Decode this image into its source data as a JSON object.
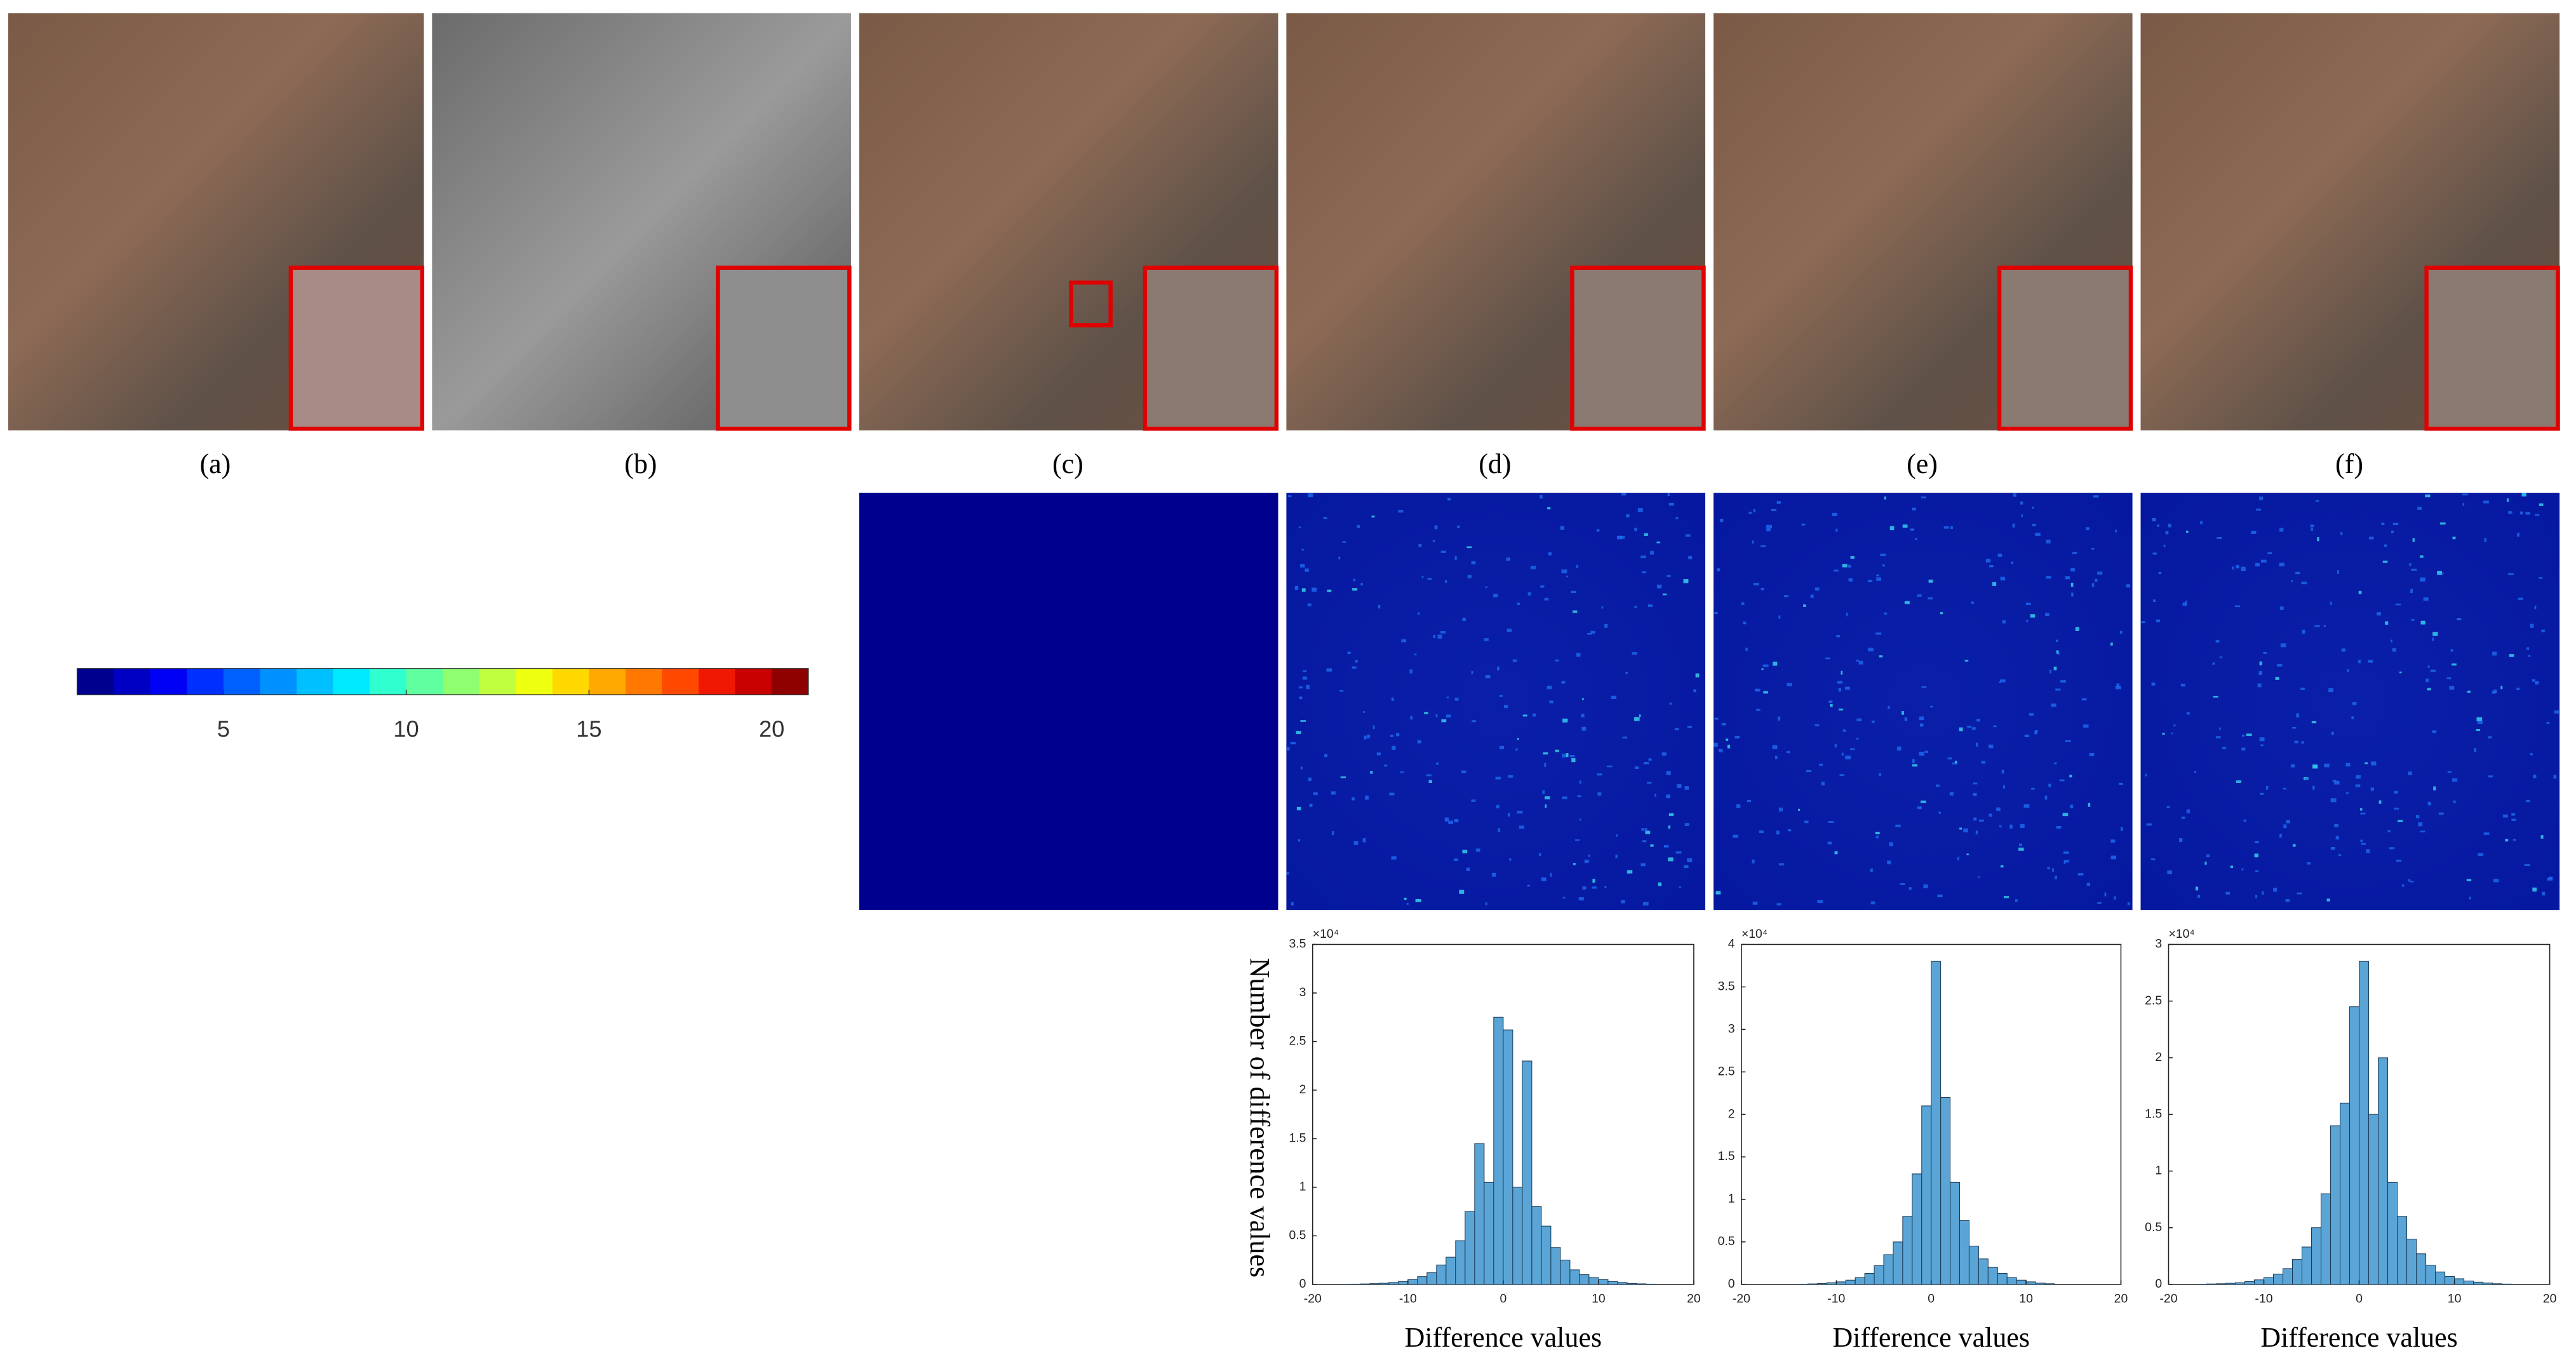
{
  "panel_labels": [
    "(a)",
    "(b)",
    "(c)",
    "(d)",
    "(e)",
    "(f)"
  ],
  "chart_data": [
    {
      "type": "colorbar",
      "clim": [
        1,
        21
      ],
      "ticks": [
        5,
        10,
        15,
        20
      ],
      "colors": [
        "#00008f",
        "#0000c4",
        "#0000f5",
        "#0030ff",
        "#0060ff",
        "#0090ff",
        "#00c0ff",
        "#00eaff",
        "#30ffcf",
        "#60ff9f",
        "#90ff6f",
        "#c0ff3f",
        "#efff10",
        "#ffd800",
        "#ffa800",
        "#ff7800",
        "#ff4800",
        "#f01800",
        "#c80000",
        "#8f0000"
      ]
    },
    {
      "type": "histogram",
      "ylabel": "Number of difference values",
      "xlabel": "Difference values",
      "y_multiplier": "×10⁴",
      "bins": [
        -17,
        -16,
        -15,
        -14,
        -13,
        -12,
        -11,
        -10,
        -9,
        -8,
        -7,
        -6,
        -5,
        -4,
        -3,
        -2,
        -1,
        0,
        1,
        2,
        3,
        4,
        5,
        6,
        7,
        8,
        9,
        10,
        11,
        12,
        13,
        14,
        15,
        16
      ],
      "values": [
        0.002,
        0.003,
        0.005,
        0.008,
        0.012,
        0.02,
        0.03,
        0.05,
        0.08,
        0.12,
        0.2,
        0.28,
        0.45,
        0.75,
        1.45,
        1.05,
        2.75,
        2.62,
        1.0,
        2.3,
        0.8,
        0.6,
        0.38,
        0.25,
        0.15,
        0.1,
        0.07,
        0.05,
        0.03,
        0.02,
        0.01,
        0.006,
        0.003
      ],
      "color": "#5aa5d6",
      "xlim": [
        -20,
        20
      ],
      "xticks": [
        -20,
        -10,
        0,
        10,
        20
      ],
      "ylim": [
        0,
        3.5
      ],
      "yticks": [
        0,
        0.5,
        1,
        1.5,
        2,
        2.5,
        3,
        3.5
      ]
    },
    {
      "type": "histogram",
      "xlabel": "Difference values",
      "y_multiplier": "×10⁴",
      "bins": [
        -14,
        -13,
        -12,
        -11,
        -10,
        -9,
        -8,
        -7,
        -6,
        -5,
        -4,
        -3,
        -2,
        -1,
        0,
        1,
        2,
        3,
        4,
        5,
        6,
        7,
        8,
        9,
        10,
        11,
        12,
        13
      ],
      "values": [
        0.003,
        0.006,
        0.01,
        0.02,
        0.03,
        0.05,
        0.08,
        0.13,
        0.22,
        0.35,
        0.5,
        0.8,
        1.3,
        2.1,
        3.8,
        2.2,
        1.2,
        0.75,
        0.45,
        0.3,
        0.2,
        0.13,
        0.08,
        0.05,
        0.03,
        0.015,
        0.008
      ],
      "color": "#5aa5d6",
      "xlim": [
        -20,
        20
      ],
      "xticks": [
        -20,
        -10,
        0,
        10,
        20
      ],
      "ylim": [
        0,
        4
      ],
      "yticks": [
        0,
        0.5,
        1,
        1.5,
        2,
        2.5,
        3,
        3.5,
        4
      ]
    },
    {
      "type": "histogram",
      "xlabel": "Difference values",
      "y_multiplier": "×10⁴",
      "bins": [
        -17,
        -16,
        -15,
        -14,
        -13,
        -12,
        -11,
        -10,
        -9,
        -8,
        -7,
        -6,
        -5,
        -4,
        -3,
        -2,
        -1,
        0,
        1,
        2,
        3,
        4,
        5,
        6,
        7,
        8,
        9,
        10,
        11,
        12,
        13,
        14,
        15,
        16
      ],
      "values": [
        0.002,
        0.004,
        0.006,
        0.01,
        0.015,
        0.025,
        0.04,
        0.06,
        0.09,
        0.14,
        0.22,
        0.33,
        0.5,
        0.8,
        1.4,
        1.6,
        2.45,
        2.85,
        1.5,
        2.0,
        0.9,
        0.6,
        0.4,
        0.27,
        0.17,
        0.11,
        0.07,
        0.05,
        0.03,
        0.02,
        0.012,
        0.006,
        0.003
      ],
      "color": "#5aa5d6",
      "xlim": [
        -20,
        20
      ],
      "xticks": [
        -20,
        -10,
        0,
        10,
        20
      ],
      "ylim": [
        0,
        3
      ],
      "yticks": [
        0,
        0.5,
        1,
        1.5,
        2,
        2.5,
        3
      ]
    }
  ]
}
